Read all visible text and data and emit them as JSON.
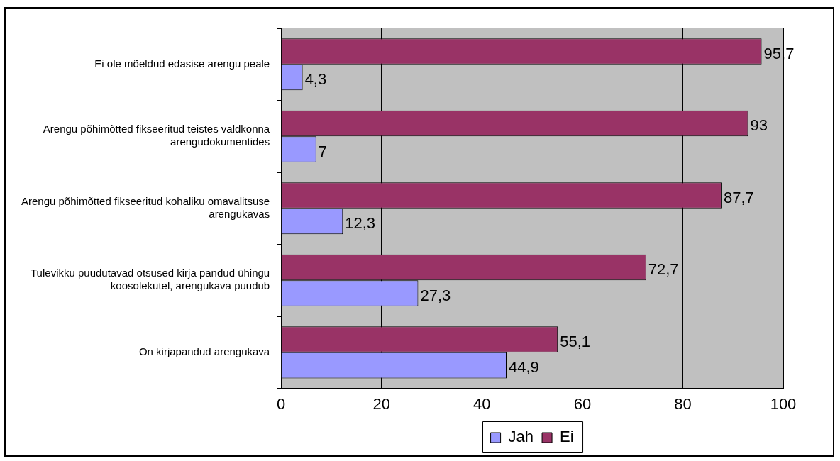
{
  "chart_data": {
    "type": "bar",
    "orientation": "horizontal",
    "categories": [
      "Ei ole mõeldud edasise arengu peale",
      "Arengu põhimõtted fikseeritud teistes valdkonna arengudokumentides",
      "Arengu põhimõtted fikseeritud kohaliku omavalitsuse arengukavas",
      "Tulevikku puudutavad otsused kirja pandud ühingu koosolekutel, arengukava puudub",
      "On kirjapandud arengukava"
    ],
    "series": [
      {
        "name": "Jah",
        "color": "#9999ff",
        "values": [
          4.3,
          7,
          12.3,
          27.3,
          44.9
        ],
        "value_labels": [
          "4,3",
          "7",
          "12,3",
          "27,3",
          "44,9"
        ]
      },
      {
        "name": "Ei",
        "color": "#993366",
        "values": [
          95.7,
          93,
          87.7,
          72.7,
          55.1
        ],
        "value_labels": [
          "95,7",
          "93",
          "87,7",
          "72,7",
          "55,1"
        ]
      }
    ],
    "xlim": [
      0,
      100
    ],
    "xticks": [
      0,
      20,
      40,
      60,
      80,
      100
    ],
    "grid": "x",
    "legend": "bottom"
  }
}
